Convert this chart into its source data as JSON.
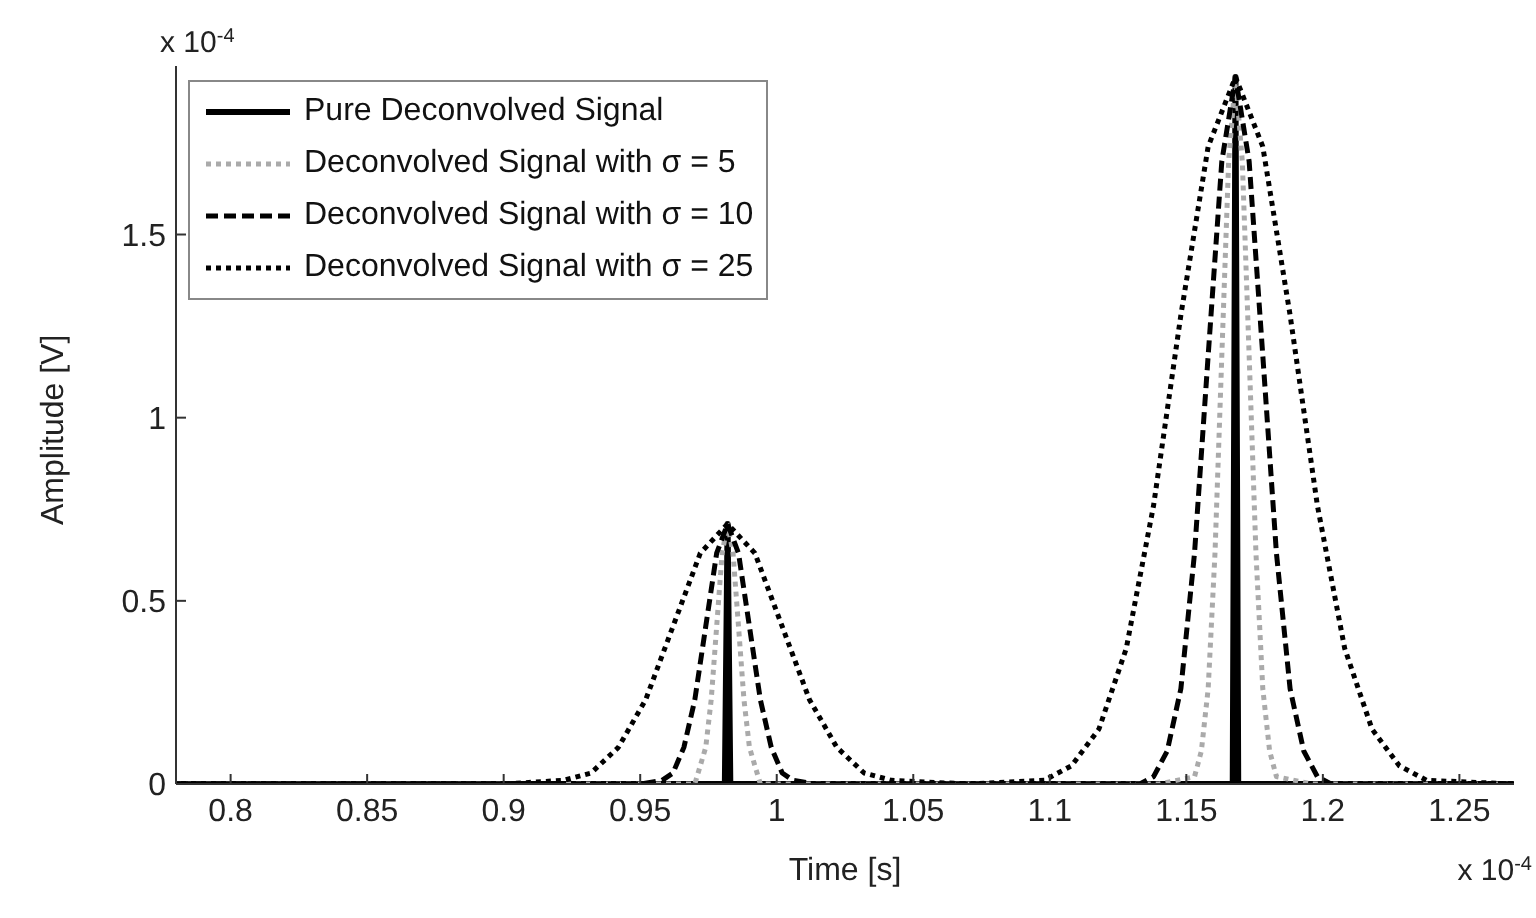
{
  "chart_data": {
    "type": "line",
    "xlabel": "Time [s]",
    "ylabel": "Amplitude [V]",
    "annotations": [
      "x 10$^{-4}$",
      "x 10$^{-4}$"
    ],
    "xlim": [
      0.78,
      1.27
    ],
    "xticks": [
      0.8,
      0.85,
      0.9,
      0.95,
      1,
      1.05,
      1.1,
      1.15,
      1.2,
      1.25
    ],
    "ylim": [
      0,
      1.96
    ],
    "yticks": [
      0,
      0.5,
      1,
      1.5
    ],
    "grid": false,
    "legend": "top left",
    "marker": "none",
    "series": [
      {
        "name": "Pure Deconvolved Signal",
        "color": "#000000",
        "line_style": "solid",
        "x": [
          0.78,
          0.981,
          0.982,
          0.983,
          1.167,
          1.168,
          1.169,
          1.27
        ],
        "values": [
          0,
          0,
          0.71,
          0,
          0,
          1.93,
          0,
          0
        ]
      },
      {
        "name": "Deconvolved Signal with σ = 5",
        "color": "#aaaaaa",
        "line_style": "dotted",
        "x": [
          0.78,
          0.97,
          0.974,
          0.976,
          0.978,
          0.98,
          0.982,
          0.984,
          0.986,
          0.988,
          0.99,
          0.994,
          1.14,
          1.153,
          1.1555,
          1.158,
          1.1605,
          1.163,
          1.1655,
          1.168,
          1.1705,
          1.173,
          1.1755,
          1.178,
          1.1805,
          1.183,
          1.196,
          1.27
        ],
        "values": [
          0,
          0,
          0.1,
          0.23,
          0.43,
          0.63,
          0.71,
          0.63,
          0.43,
          0.23,
          0.1,
          0,
          0,
          0.02,
          0.09,
          0.26,
          0.63,
          1.17,
          1.7,
          1.93,
          1.7,
          1.17,
          0.63,
          0.26,
          0.09,
          0.02,
          0,
          0
        ]
      },
      {
        "name": "Deconvolved Signal with σ = 10",
        "color": "#000000",
        "line_style": "dashed",
        "x": [
          0.78,
          0.95,
          0.958,
          0.962,
          0.966,
          0.97,
          0.974,
          0.978,
          0.982,
          0.986,
          0.99,
          0.994,
          0.998,
          1.002,
          1.006,
          1.014,
          1.12,
          1.133,
          1.138,
          1.143,
          1.148,
          1.153,
          1.158,
          1.163,
          1.168,
          1.173,
          1.178,
          1.183,
          1.188,
          1.193,
          1.198,
          1.203,
          1.215,
          1.27
        ],
        "values": [
          0,
          0,
          0.01,
          0.03,
          0.1,
          0.23,
          0.43,
          0.63,
          0.71,
          0.63,
          0.43,
          0.23,
          0.1,
          0.03,
          0.01,
          0,
          0,
          0,
          0.02,
          0.09,
          0.26,
          0.63,
          1.17,
          1.7,
          1.93,
          1.7,
          1.17,
          0.63,
          0.26,
          0.09,
          0.02,
          0,
          0,
          0
        ]
      },
      {
        "name": "Deconvolved Signal with σ = 25",
        "color": "#000000",
        "line_style": "dotted",
        "x": [
          0.78,
          0.9,
          0.922,
          0.932,
          0.942,
          0.952,
          0.962,
          0.972,
          0.982,
          0.992,
          1.002,
          1.012,
          1.022,
          1.032,
          1.042,
          1.07,
          1.098,
          1.108,
          1.118,
          1.128,
          1.138,
          1.148,
          1.158,
          1.168,
          1.178,
          1.188,
          1.198,
          1.208,
          1.218,
          1.228,
          1.238,
          1.27
        ],
        "values": [
          0,
          0,
          0.01,
          0.03,
          0.1,
          0.23,
          0.43,
          0.63,
          0.71,
          0.63,
          0.43,
          0.23,
          0.1,
          0.03,
          0.01,
          0,
          0.01,
          0.05,
          0.15,
          0.37,
          0.76,
          1.28,
          1.74,
          1.93,
          1.74,
          1.28,
          0.76,
          0.37,
          0.15,
          0.05,
          0.01,
          0
        ]
      }
    ]
  }
}
